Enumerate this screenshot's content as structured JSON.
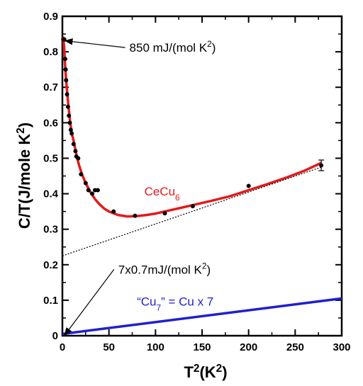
{
  "chart_data": {
    "type": "line",
    "xlabel": "T²(K²)",
    "ylabel": "C/T(J/mole K²)",
    "xlim": [
      0,
      300
    ],
    "ylim": [
      0,
      0.9
    ],
    "x_ticks": [
      "0",
      "50",
      "100",
      "150",
      "200",
      "250",
      "300"
    ],
    "y_ticks": [
      "0",
      "0.1",
      "0.2",
      "0.3",
      "0.4",
      "0.5",
      "0.6",
      "0.7",
      "0.8",
      "0.9"
    ],
    "grid": false,
    "colors": {
      "cecu6": "#e41a1c",
      "cu7": "#1f1fd0",
      "data": "#000000",
      "linear": "#000000"
    },
    "series": [
      {
        "name": "CeCu6",
        "type": "line",
        "x": [
          0.5,
          1,
          2,
          3,
          4,
          5,
          6,
          8,
          10,
          12,
          15,
          18,
          21,
          25,
          30,
          35,
          40,
          45,
          50,
          55,
          60,
          70,
          80,
          90,
          100,
          110,
          120,
          140,
          160,
          180,
          200,
          220,
          240,
          260,
          278
        ],
        "y": [
          0.83,
          0.84,
          0.81,
          0.76,
          0.72,
          0.69,
          0.66,
          0.61,
          0.57,
          0.55,
          0.51,
          0.48,
          0.455,
          0.43,
          0.405,
          0.385,
          0.37,
          0.358,
          0.35,
          0.345,
          0.34,
          0.336,
          0.337,
          0.34,
          0.344,
          0.35,
          0.356,
          0.368,
          0.38,
          0.393,
          0.41,
          0.427,
          0.445,
          0.465,
          0.487
        ]
      },
      {
        "name": "Cu7",
        "type": "line",
        "x": [
          0,
          300
        ],
        "y": [
          0.005,
          0.105
        ]
      },
      {
        "type": "dotted",
        "x": [
          0,
          278
        ],
        "y": [
          0.225,
          0.475
        ]
      },
      {
        "type": "scatter",
        "x": [
          1,
          2,
          3,
          3.5,
          4,
          5,
          6,
          7,
          8,
          9,
          10,
          12,
          14,
          15,
          17,
          20,
          25,
          28,
          32,
          35,
          38,
          55,
          78,
          110,
          140,
          200,
          278
        ],
        "y": [
          0.835,
          0.835,
          0.78,
          0.75,
          0.72,
          0.68,
          0.645,
          0.62,
          0.6,
          0.58,
          0.57,
          0.54,
          0.52,
          0.505,
          0.5,
          0.455,
          0.43,
          0.41,
          0.4,
          0.41,
          0.41,
          0.35,
          0.338,
          0.345,
          0.365,
          0.422,
          0.48
        ],
        "err": [
          0,
          0,
          0,
          0,
          0,
          0,
          0,
          0,
          0,
          0,
          0,
          0,
          0,
          0,
          0,
          0,
          0,
          0,
          0,
          0,
          0,
          0,
          0,
          0,
          0,
          0,
          0.015
        ]
      }
    ],
    "annotations": [
      {
        "text": "850 mJ/(mol K²)",
        "x": 72,
        "y": 0.8,
        "arrow_to": [
          0.5,
          0.835
        ]
      },
      {
        "text": "7x0.7mJ/(mol K²)",
        "x": 60,
        "y": 0.175,
        "arrow_to": [
          0,
          0.005
        ]
      },
      {
        "text": "CeCu₆",
        "x": 88,
        "y": 0.395,
        "color": "#e41a1c"
      },
      {
        "text": "“Cu₇” = Cu x 7",
        "x": 80,
        "y": 0.085,
        "color": "#1f1fd0"
      }
    ]
  }
}
